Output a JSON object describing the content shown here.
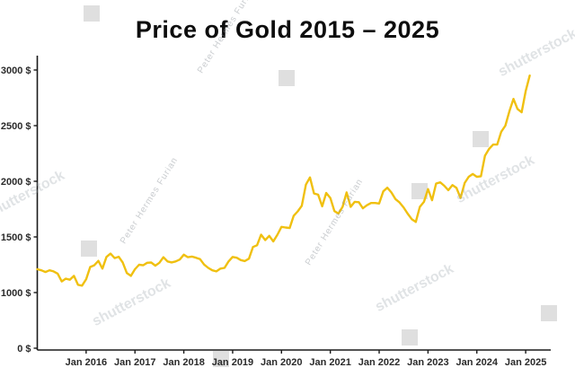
{
  "chart_data": {
    "type": "line",
    "title": "Price of Gold 2015 – 2025",
    "start_month": "2015-01",
    "x_tick_labels": [
      "Jan 2016",
      "Jan 2017",
      "Jan 2018",
      "Jan 2019",
      "Jan 2020",
      "Jan 2021",
      "Jan 2022",
      "Jan 2023",
      "Jan 2024",
      "Jan 2025"
    ],
    "y_tick_labels": [
      {
        "label": "3000 $",
        "value": 3000
      },
      {
        "label": "2500 $",
        "value": 2500
      },
      {
        "label": "2000 $",
        "value": 2000
      },
      {
        "label": "1500 $",
        "value": 1500
      },
      {
        "label": "1000 $",
        "value": 1000
      },
      {
        "label": "0 $",
        "value": 0
      }
    ],
    "ylim": [
      1000,
      3000
    ],
    "grid": false,
    "legend": false,
    "line_color": "#F0C010",
    "values": [
      1210,
      1200,
      1185,
      1200,
      1190,
      1170,
      1100,
      1125,
      1115,
      1150,
      1070,
      1062,
      1120,
      1230,
      1245,
      1285,
      1215,
      1320,
      1350,
      1310,
      1322,
      1270,
      1175,
      1150,
      1210,
      1250,
      1245,
      1268,
      1270,
      1242,
      1268,
      1318,
      1280,
      1271,
      1280,
      1297,
      1340,
      1318,
      1323,
      1313,
      1300,
      1252,
      1222,
      1200,
      1190,
      1215,
      1222,
      1280,
      1320,
      1313,
      1292,
      1283,
      1305,
      1410,
      1425,
      1520,
      1472,
      1510,
      1460,
      1520,
      1590,
      1585,
      1580,
      1690,
      1730,
      1780,
      1970,
      2035,
      1890,
      1880,
      1775,
      1895,
      1850,
      1732,
      1710,
      1770,
      1900,
      1770,
      1815,
      1812,
      1757,
      1785,
      1805,
      1805,
      1800,
      1910,
      1942,
      1900,
      1840,
      1810,
      1765,
      1710,
      1660,
      1635,
      1770,
      1815,
      1930,
      1830,
      1980,
      1990,
      1960,
      1920,
      1965,
      1940,
      1850,
      1985,
      2040,
      2065,
      2040,
      2045,
      2230,
      2290,
      2330,
      2330,
      2445,
      2500,
      2630,
      2740,
      2650,
      2620,
      2810,
      2950
    ]
  },
  "watermarks": {
    "agency": "shutterstock",
    "author": "Peter Hermes Furian"
  }
}
